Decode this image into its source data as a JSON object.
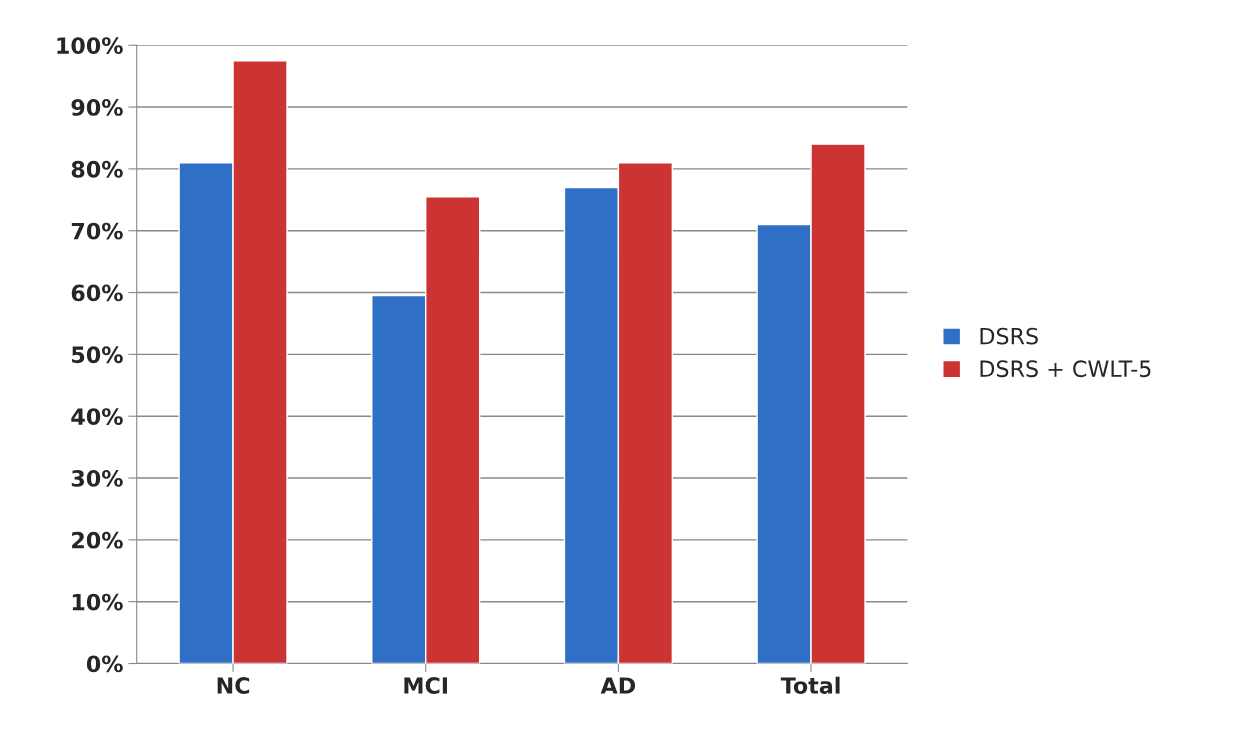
{
  "chart_data": {
    "type": "bar",
    "categories": [
      "NC",
      "MCI",
      "AD",
      "Total"
    ],
    "series": [
      {
        "name": "DSRS",
        "color": "#2f6fc6",
        "values": [
          81,
          59.5,
          77,
          71
        ]
      },
      {
        "name": "DSRS + CWLT-5",
        "color": "#cc3333",
        "values": [
          97.5,
          75.5,
          81,
          84
        ]
      }
    ],
    "ylim": [
      0,
      100
    ],
    "yticks": [
      {
        "value": 0,
        "label": "0%"
      },
      {
        "value": 10,
        "label": "10%"
      },
      {
        "value": 20,
        "label": "20%"
      },
      {
        "value": 30,
        "label": "30%"
      },
      {
        "value": 40,
        "label": "40%"
      },
      {
        "value": 50,
        "label": "50%"
      },
      {
        "value": 60,
        "label": "60%"
      },
      {
        "value": 70,
        "label": "70%"
      },
      {
        "value": 80,
        "label": "80%"
      },
      {
        "value": 90,
        "label": "90%"
      },
      {
        "value": 100,
        "label": "100%"
      }
    ],
    "grid": "y",
    "legend": "right"
  }
}
